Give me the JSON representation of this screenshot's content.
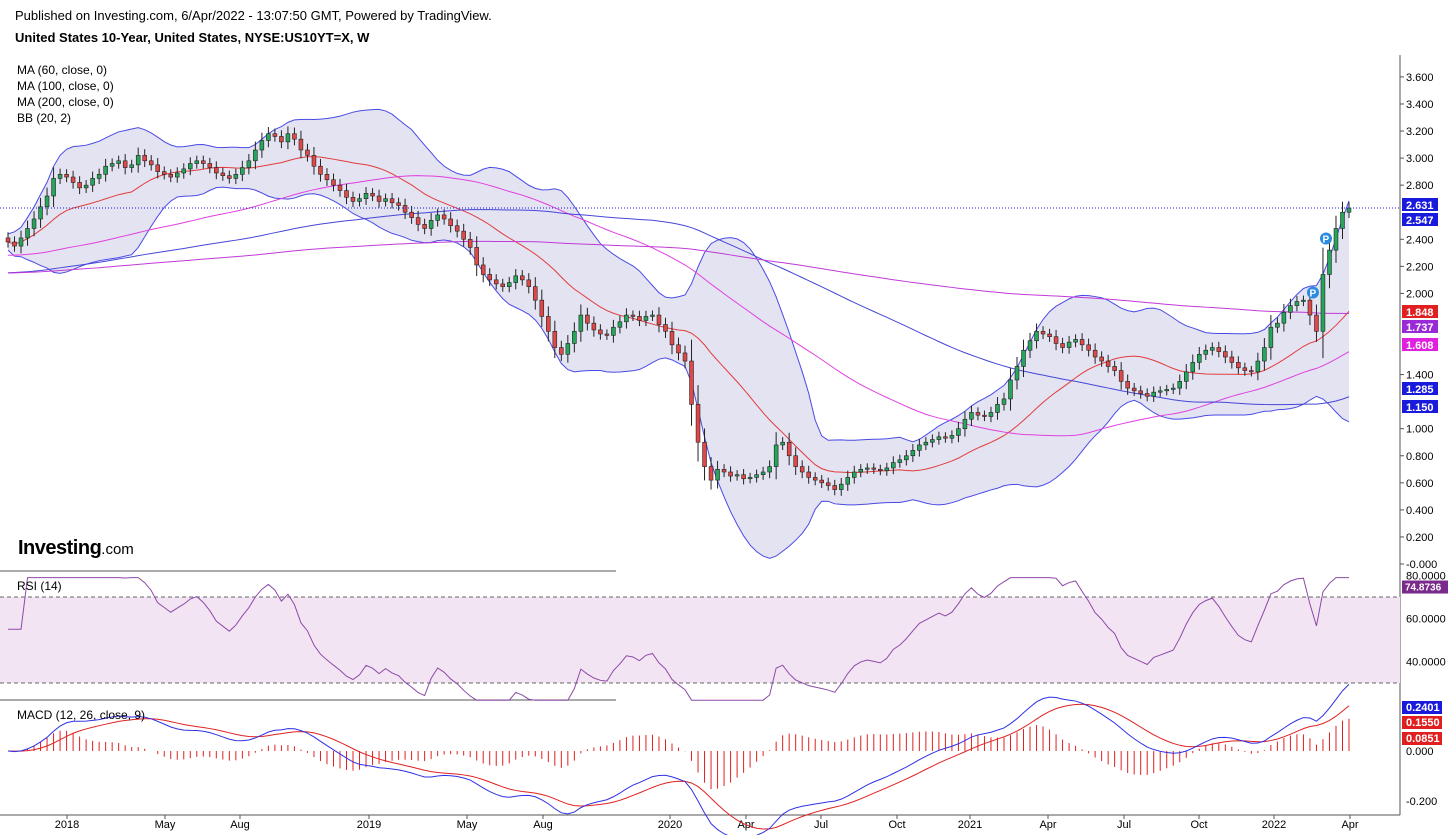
{
  "header": {
    "published": "Published on Investing.com, 6/Apr/2022 - 13:07:50 GMT, Powered by TradingView.",
    "instrument": "United States 10-Year, United States, NYSE:US10YT=X, W"
  },
  "logo": {
    "text": "Investing",
    "suffix": ".com"
  },
  "indicators": {
    "ma60": "MA (60, close, 0)",
    "ma100": "MA (100, close, 0)",
    "ma200": "MA (200, close, 0)",
    "bb": "BB (20, 2)",
    "rsi": "RSI (14)",
    "macd": "MACD (12, 26, close, 9)"
  },
  "colors": {
    "up": "#26a65b",
    "down": "#e04848",
    "bb_band": "#4a4ae6",
    "bb_fill": "#e3e3f2",
    "basis": "#e23c3c",
    "ma_violet": "#c03ad8",
    "ma_blue": "#4646d8",
    "rsi_line": "#8d4aa8",
    "rsi_zone": "#f3e4f3",
    "macd_line": "#3030e6",
    "signal_line": "#e02020",
    "hist": "#e02020"
  },
  "chart_data": [
    {
      "type": "candlestick",
      "title": "United States 10-Year, United States, NYSE:US10YT=X, W",
      "x_ticks": [
        "2018",
        "May",
        "Aug",
        "2019",
        "May",
        "Aug",
        "2020",
        "Apr",
        "Jul",
        "Oct",
        "2021",
        "Apr",
        "Jul",
        "Oct",
        "2022",
        "Apr"
      ],
      "x_range": [
        "2017-11",
        "2022-04"
      ],
      "y_ticks": [
        "3.600",
        "3.400",
        "3.200",
        "3.000",
        "2.800",
        "2.400",
        "2.200",
        "2.000",
        "1.400",
        "1.000",
        "0.800",
        "0.600",
        "0.400",
        "0.200",
        "-0.000"
      ],
      "ylim": [
        0,
        3.7
      ],
      "grid": false,
      "last_price_line": 2.631,
      "markers": [
        "P",
        "P"
      ],
      "price_labels": [
        {
          "value": "2.631",
          "color": "#1a1adc"
        },
        {
          "value": "2.547",
          "color": "#1a1adc"
        },
        {
          "value": "1.848",
          "color": "#e02020"
        },
        {
          "value": "1.737",
          "color": "#9a2ad8"
        },
        {
          "value": "1.608",
          "color": "#e020e0"
        },
        {
          "value": "1.285",
          "color": "#1a1adc"
        },
        {
          "value": "1.150",
          "color": "#1a1adc"
        }
      ],
      "closes": [
        2.38,
        2.35,
        2.41,
        2.48,
        2.55,
        2.64,
        2.72,
        2.85,
        2.88,
        2.86,
        2.82,
        2.78,
        2.8,
        2.85,
        2.88,
        2.94,
        2.96,
        2.98,
        2.93,
        2.95,
        3.02,
        2.98,
        2.95,
        2.9,
        2.88,
        2.86,
        2.89,
        2.92,
        2.96,
        2.98,
        2.96,
        2.93,
        2.89,
        2.87,
        2.85,
        2.88,
        2.93,
        2.98,
        3.06,
        3.13,
        3.18,
        3.16,
        3.12,
        3.18,
        3.14,
        3.06,
        3.02,
        2.94,
        2.88,
        2.84,
        2.8,
        2.76,
        2.71,
        2.68,
        2.7,
        2.74,
        2.72,
        2.68,
        2.7,
        2.67,
        2.65,
        2.6,
        2.56,
        2.51,
        2.48,
        2.54,
        2.58,
        2.55,
        2.5,
        2.46,
        2.4,
        2.34,
        2.21,
        2.14,
        2.1,
        2.07,
        2.05,
        2.08,
        2.13,
        2.1,
        2.05,
        1.95,
        1.83,
        1.72,
        1.6,
        1.55,
        1.63,
        1.72,
        1.84,
        1.78,
        1.73,
        1.7,
        1.69,
        1.75,
        1.79,
        1.84,
        1.83,
        1.8,
        1.83,
        1.84,
        1.77,
        1.72,
        1.62,
        1.56,
        1.5,
        1.18,
        0.9,
        0.72,
        0.62,
        0.7,
        0.68,
        0.65,
        0.66,
        0.63,
        0.64,
        0.66,
        0.68,
        0.72,
        0.88,
        0.9,
        0.8,
        0.72,
        0.68,
        0.64,
        0.62,
        0.6,
        0.58,
        0.55,
        0.59,
        0.64,
        0.68,
        0.7,
        0.71,
        0.7,
        0.69,
        0.71,
        0.75,
        0.77,
        0.8,
        0.84,
        0.88,
        0.9,
        0.92,
        0.94,
        0.93,
        0.95,
        1.0,
        1.07,
        1.12,
        1.1,
        1.09,
        1.12,
        1.18,
        1.22,
        1.36,
        1.46,
        1.58,
        1.65,
        1.72,
        1.7,
        1.68,
        1.63,
        1.6,
        1.64,
        1.66,
        1.62,
        1.58,
        1.53,
        1.5,
        1.46,
        1.43,
        1.35,
        1.3,
        1.28,
        1.26,
        1.24,
        1.27,
        1.28,
        1.29,
        1.3,
        1.35,
        1.42,
        1.49,
        1.55,
        1.58,
        1.6,
        1.57,
        1.53,
        1.49,
        1.45,
        1.43,
        1.42,
        1.5,
        1.6,
        1.75,
        1.78,
        1.86,
        1.91,
        1.94,
        1.95,
        1.84,
        1.72,
        2.14,
        2.32,
        2.48,
        2.6,
        2.631
      ],
      "ma_blue_end": 1.737,
      "ma_violet_end": 1.608,
      "basis_end": 1.848,
      "bb_upper_end": 2.547,
      "bb_lower_end": 1.15
    },
    {
      "type": "line",
      "title": "RSI (14)",
      "y_ticks": [
        "80.0000",
        "60.0000",
        "40.0000"
      ],
      "ylim": [
        20,
        80
      ],
      "bands": [
        70,
        30
      ],
      "last_value": "74.8736"
    },
    {
      "type": "line",
      "title": "MACD (12, 26, close, 9)",
      "y_ticks": [
        "0.000",
        "-0.200"
      ],
      "ylim": [
        -0.34,
        0.32
      ],
      "series_last": [
        {
          "value": "0.2401",
          "color": "#1a1adc"
        },
        {
          "value": "0.1550",
          "color": "#e02020"
        },
        {
          "value": "0.0851",
          "color": "#e02020"
        }
      ]
    }
  ]
}
